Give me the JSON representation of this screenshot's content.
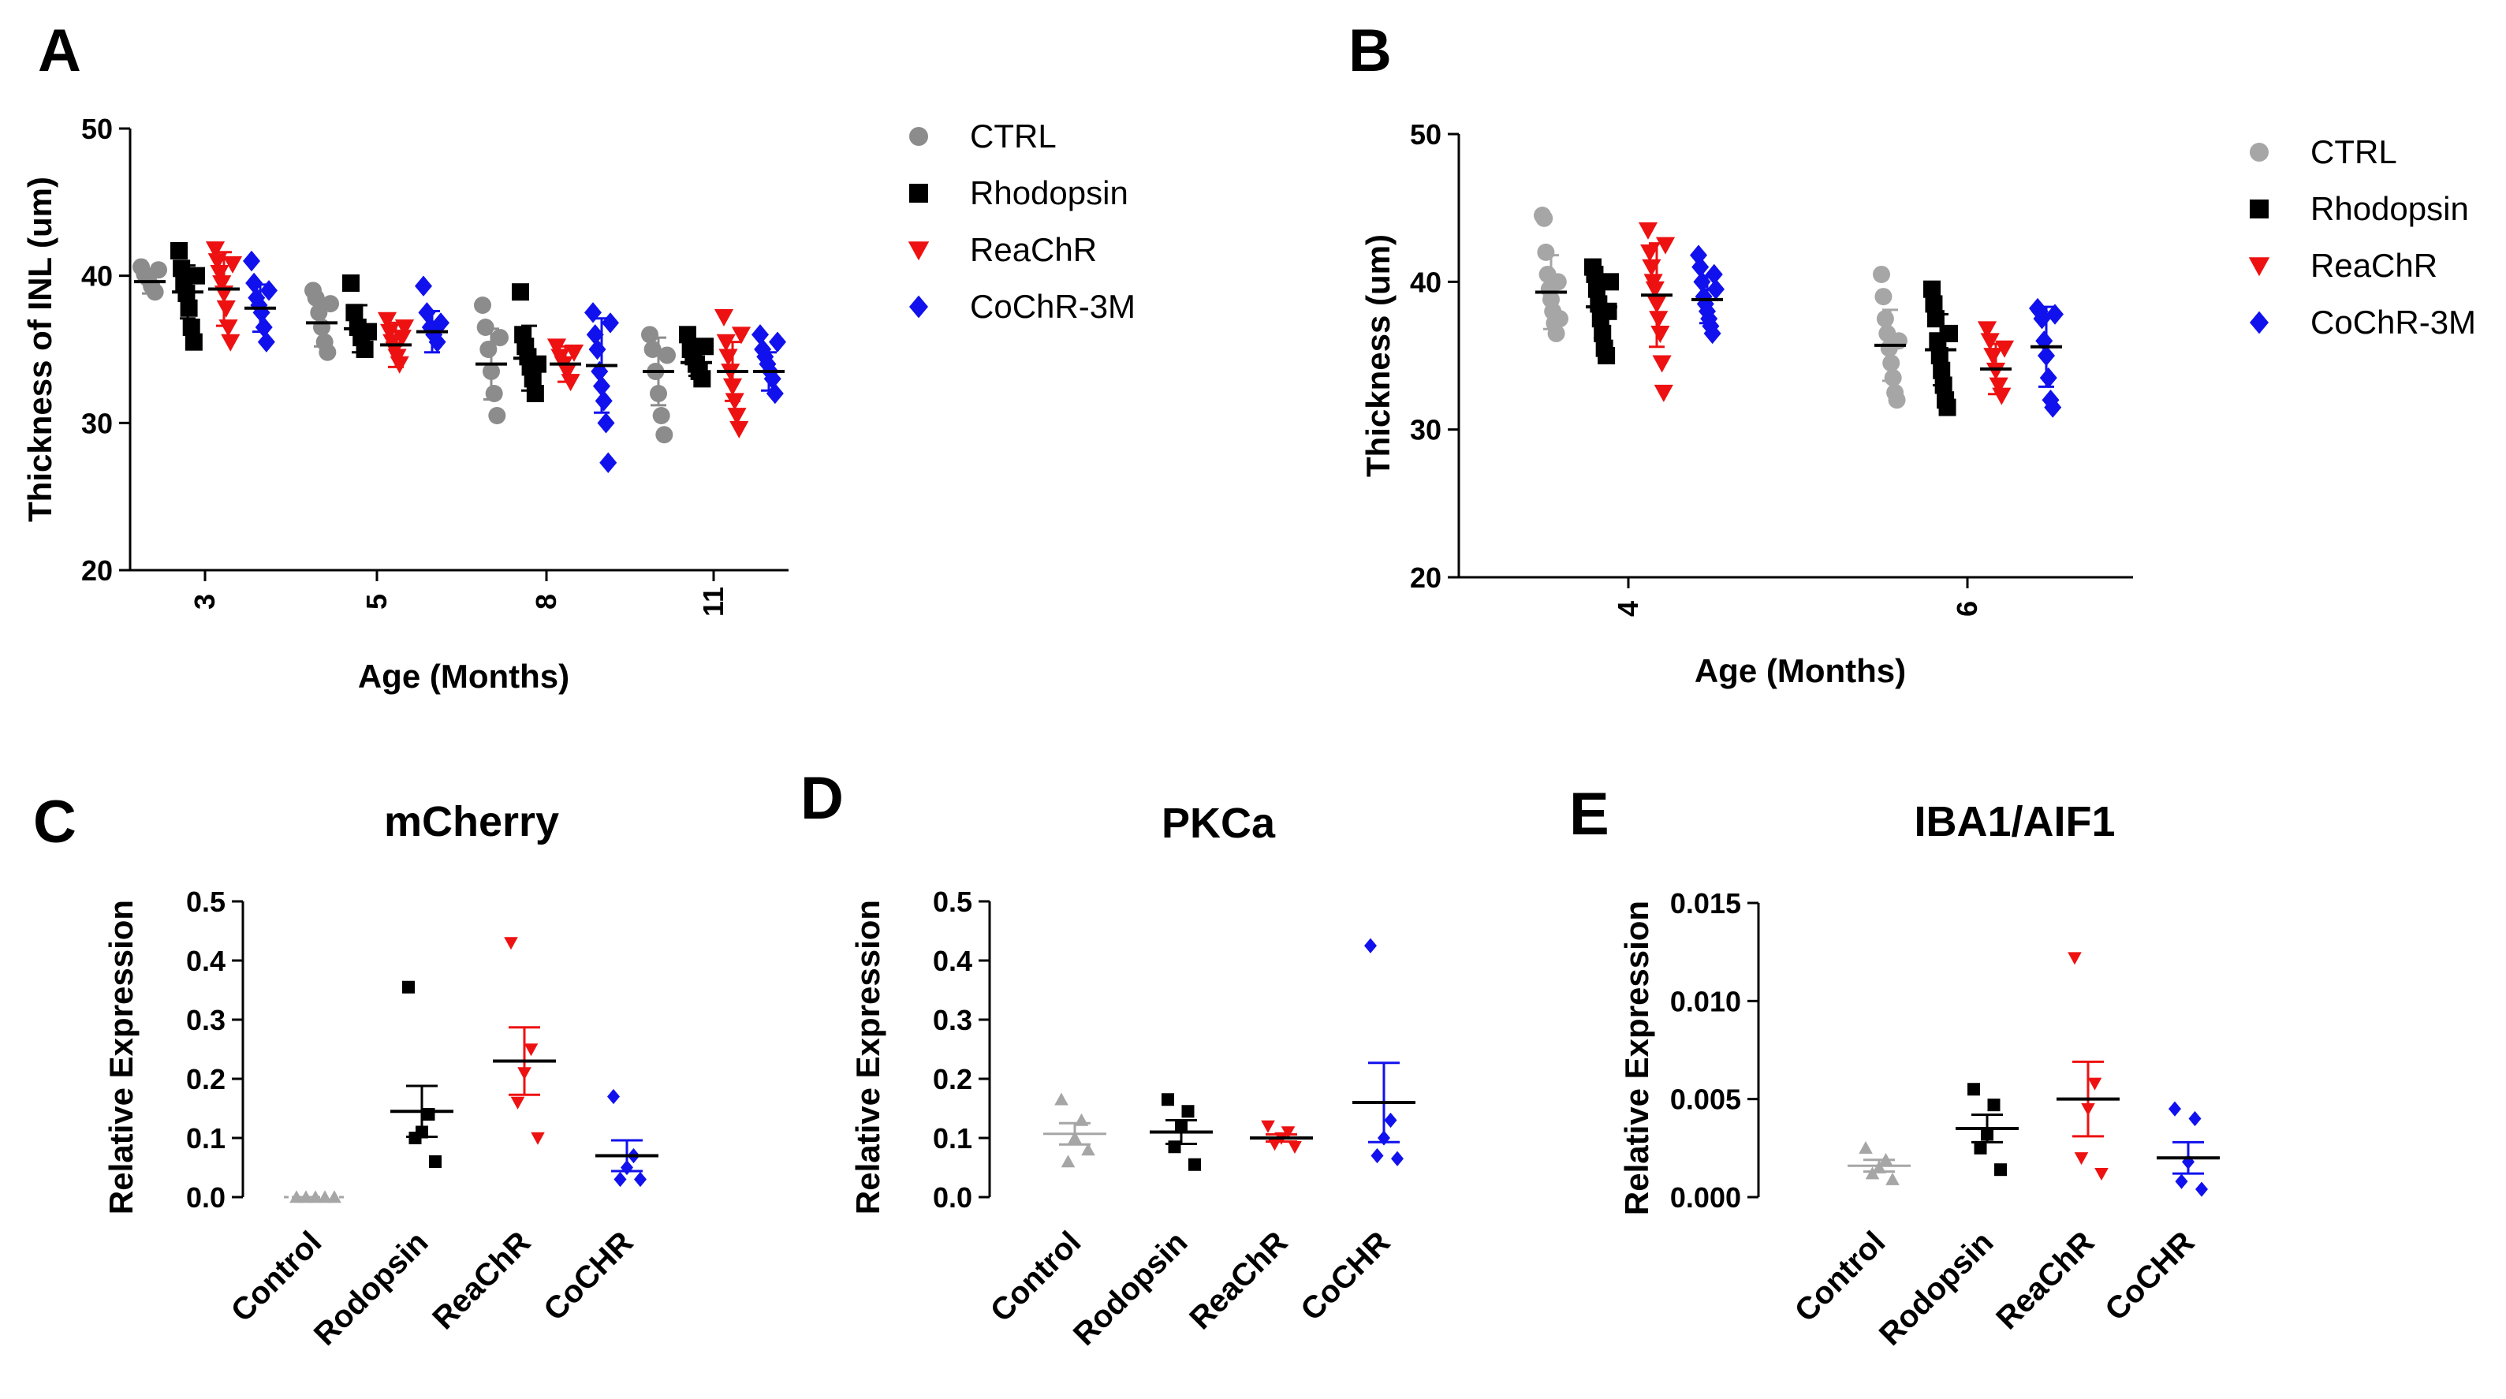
{
  "figure": {
    "panel_letters": [
      "A",
      "B",
      "C",
      "D",
      "E"
    ]
  },
  "colors": {
    "CTRL": "#8c8c8c",
    "Control": "#a6a6a6",
    "Rhodopsin": "#000000",
    "ReaChR": "#ee1111",
    "CoChR": "#1111ee",
    "axis": "#000000"
  },
  "chart_data": [
    {
      "id": "A",
      "type": "scatter",
      "title": "",
      "xlabel": "Age (Months)",
      "ylabel": "Thickness of  INL (um)",
      "ylim": [
        20,
        50
      ],
      "yticks": [
        "20",
        "30",
        "40",
        "50"
      ],
      "categories": [
        "3",
        "5",
        "8",
        "11"
      ],
      "legend": {
        "position": "right",
        "entries": [
          {
            "label": "CTRL",
            "marker": "circle",
            "color": "CTRL"
          },
          {
            "label": "Rhodopsin",
            "marker": "square",
            "color": "Rhodopsin"
          },
          {
            "label": "ReaChR",
            "marker": "triangle-down",
            "color": "ReaChR"
          },
          {
            "label": "CoChR-3M",
            "marker": "diamond",
            "color": "CoChR"
          }
        ]
      },
      "series": [
        {
          "name": "CTRL",
          "marker": "circle",
          "color": "CTRL",
          "points": [
            [
              40.6,
              40.1,
              39.8,
              39.3,
              38.9,
              40.4
            ],
            [
              39.0,
              38.5,
              37.5,
              36.5,
              35.5,
              34.8,
              38.1
            ],
            [
              38.0,
              36.5,
              35.0,
              33.5,
              32.0,
              30.5,
              35.8
            ],
            [
              36.0,
              35.0,
              33.5,
              32.0,
              30.5,
              29.2,
              34.6
            ]
          ],
          "mean": [
            39.6,
            36.8,
            34.0,
            33.5
          ],
          "sd": [
            0.8,
            1.6,
            2.4,
            2.3
          ]
        },
        {
          "name": "Rhodopsin",
          "marker": "square",
          "color": "Rhodopsin",
          "points": [
            [
              41.7,
              40.5,
              39.5,
              38.8,
              37.8,
              36.5,
              35.5,
              40.0
            ],
            [
              39.5,
              37.5,
              36.5,
              35.8,
              35.0,
              36.2
            ],
            [
              38.9,
              36.0,
              35.2,
              34.5,
              33.8,
              33.0,
              32.0,
              34.0
            ],
            [
              36.0,
              35.0,
              34.5,
              34.0,
              33.5,
              33.0,
              35.2
            ]
          ],
          "mean": [
            38.9,
            36.4,
            34.4,
            34.1
          ],
          "sd": [
            1.8,
            1.6,
            2.2,
            0.9
          ]
        },
        {
          "name": "ReaChR",
          "marker": "triangle-down",
          "color": "ReaChR",
          "points": [
            [
              41.8,
              41.0,
              40.2,
              39.5,
              38.8,
              37.8,
              36.5,
              35.5,
              40.8
            ],
            [
              37.0,
              36.2,
              35.5,
              35.0,
              34.5,
              34.0,
              35.8,
              36.5
            ],
            [
              35.2,
              34.5,
              34.0,
              33.5,
              32.8,
              34.8
            ],
            [
              37.2,
              35.5,
              34.5,
              33.5,
              32.5,
              31.5,
              30.5,
              29.6,
              36.0
            ]
          ],
          "mean": [
            39.1,
            35.3,
            34.0,
            33.5
          ],
          "sd": [
            2.5,
            1.5,
            1.2,
            2.0
          ]
        },
        {
          "name": "CoChR-3M",
          "marker": "diamond",
          "color": "CoChR",
          "points": [
            [
              41.0,
              39.5,
              38.5,
              38.0,
              37.5,
              36.5,
              35.5,
              39.0
            ],
            [
              39.3,
              37.5,
              36.5,
              36.0,
              35.5,
              36.8
            ],
            [
              37.5,
              36.0,
              35.0,
              33.5,
              32.5,
              31.5,
              30.0,
              27.3,
              36.8
            ],
            [
              36.0,
              35.0,
              34.5,
              34.0,
              33.5,
              33.0,
              32.0,
              35.5
            ]
          ],
          "mean": [
            37.8,
            36.2,
            33.9,
            33.5
          ],
          "sd": [
            1.6,
            1.4,
            3.2,
            1.3
          ]
        }
      ]
    },
    {
      "id": "B",
      "type": "scatter",
      "title": "",
      "xlabel": "Age (Months)",
      "ylabel": "Thickness (um)",
      "ylim": [
        20,
        50
      ],
      "yticks": [
        "20",
        "30",
        "40",
        "50"
      ],
      "categories": [
        "4",
        "6"
      ],
      "legend": {
        "position": "right",
        "entries": [
          {
            "label": "CTRL",
            "marker": "circle",
            "color": "Control"
          },
          {
            "label": "Rhodopsin",
            "marker": "square",
            "color": "Rhodopsin"
          },
          {
            "label": "ReaChR",
            "marker": "triangle-down",
            "color": "ReaChR"
          },
          {
            "label": "CoChR-3M",
            "marker": "diamond",
            "color": "CoChR"
          }
        ]
      },
      "series": [
        {
          "name": "CTRL",
          "marker": "circle",
          "color": "Control",
          "points": [
            [
              44.5,
              44.3,
              42.0,
              40.5,
              39.5,
              38.8,
              38.0,
              37.2,
              36.5,
              40.0,
              37.5
            ],
            [
              40.5,
              39.0,
              37.5,
              36.5,
              35.5,
              34.5,
              33.5,
              32.5,
              32.0,
              36.0
            ]
          ],
          "mean": [
            39.3,
            35.7
          ],
          "sd": [
            2.5,
            2.4
          ]
        },
        {
          "name": "Rhodopsin",
          "marker": "square",
          "color": "Rhodopsin",
          "points": [
            [
              41.0,
              40.5,
              39.5,
              38.5,
              37.5,
              36.5,
              35.5,
              35.0,
              38.0,
              40.0
            ],
            [
              39.5,
              38.5,
              37.5,
              36.0,
              35.0,
              34.0,
              33.0,
              32.0,
              31.5,
              36.5
            ]
          ],
          "mean": [
            38.3,
            35.4
          ],
          "sd": [
            2.1,
            2.4
          ]
        },
        {
          "name": "ReaChR",
          "marker": "triangle-down",
          "color": "ReaChR",
          "points": [
            [
              43.5,
              42.0,
              41.0,
              40.0,
              39.5,
              38.5,
              37.5,
              36.5,
              34.5,
              32.5,
              42.5
            ],
            [
              36.8,
              36.0,
              35.0,
              34.0,
              33.0,
              32.3,
              35.5
            ]
          ],
          "mean": [
            39.1,
            34.1
          ],
          "sd": [
            3.5,
            1.7
          ]
        },
        {
          "name": "CoChR-3M",
          "marker": "diamond",
          "color": "CoChR",
          "points": [
            [
              41.8,
              41.0,
              40.0,
              39.0,
              38.5,
              38.0,
              37.5,
              37.0,
              36.5,
              40.5,
              39.5
            ],
            [
              38.2,
              38.0,
              37.5,
              36.0,
              35.0,
              33.5,
              32.0,
              31.5,
              37.8
            ]
          ],
          "mean": [
            38.8,
            35.6
          ],
          "sd": [
            1.6,
            2.7
          ]
        }
      ]
    },
    {
      "id": "C",
      "type": "scatter",
      "title": "mCherry",
      "xlabel": "",
      "ylabel": "Relative Expression",
      "ylim": [
        0,
        0.5
      ],
      "yticks": [
        "0.0",
        "0.1",
        "0.2",
        "0.3",
        "0.4",
        "0.5"
      ],
      "categories": [
        "Control",
        "Rodopsin",
        "ReaChR",
        "CoCHR"
      ],
      "groups": [
        {
          "name": "Control",
          "marker": "triangle-up",
          "color": "Control",
          "points": [
            0.0,
            0.0,
            0.0,
            0.0,
            0.0
          ],
          "mean": 0.0,
          "sem": 0.0
        },
        {
          "name": "Rodopsin",
          "marker": "square",
          "color": "Rhodopsin",
          "points": [
            0.355,
            0.14,
            0.11,
            0.1,
            0.06
          ],
          "mean": 0.145,
          "sem": 0.043
        },
        {
          "name": "ReaChR",
          "marker": "triangle-down",
          "color": "ReaChR",
          "points": [
            0.43,
            0.25,
            0.21,
            0.16,
            0.1
          ],
          "mean": 0.23,
          "sem": 0.057
        },
        {
          "name": "CoCHR",
          "marker": "diamond",
          "color": "CoChR",
          "points": [
            0.17,
            0.07,
            0.05,
            0.03,
            0.03
          ],
          "mean": 0.07,
          "sem": 0.026
        }
      ]
    },
    {
      "id": "D",
      "type": "scatter",
      "title": "PKCa",
      "xlabel": "",
      "ylabel": "Relative Expression",
      "ylim": [
        0,
        0.5
      ],
      "yticks": [
        "0.0",
        "0.1",
        "0.2",
        "0.3",
        "0.4",
        "0.5"
      ],
      "categories": [
        "Control",
        "Rodopsin",
        "ReaChR",
        "CoCHR"
      ],
      "groups": [
        {
          "name": "Control",
          "marker": "triangle-up",
          "color": "Control",
          "points": [
            0.165,
            0.13,
            0.1,
            0.06,
            0.08
          ],
          "mean": 0.107,
          "sem": 0.018
        },
        {
          "name": "Rodopsin",
          "marker": "square",
          "color": "Rhodopsin",
          "points": [
            0.165,
            0.145,
            0.12,
            0.085,
            0.055
          ],
          "mean": 0.11,
          "sem": 0.02
        },
        {
          "name": "ReaChR",
          "marker": "triangle-down",
          "color": "ReaChR",
          "points": [
            0.12,
            0.11,
            0.1,
            0.09,
            0.085
          ],
          "mean": 0.1,
          "sem": 0.006
        },
        {
          "name": "CoCHR",
          "marker": "diamond",
          "color": "CoChR",
          "points": [
            0.425,
            0.13,
            0.1,
            0.07,
            0.065
          ],
          "mean": 0.16,
          "sem": 0.067
        }
      ]
    },
    {
      "id": "E",
      "type": "scatter",
      "title": "IBA1/AIF1",
      "xlabel": "",
      "ylabel": "Relative Expression",
      "ylim": [
        0,
        0.015
      ],
      "yticks": [
        "0.000",
        "0.005",
        "0.010",
        "0.015"
      ],
      "categories": [
        "Control",
        "Rodopsin",
        "ReaChR",
        "CoCHR"
      ],
      "groups": [
        {
          "name": "Control",
          "marker": "triangle-up",
          "color": "Control",
          "points": [
            0.0025,
            0.0019,
            0.0015,
            0.0012,
            0.0009
          ],
          "mean": 0.0016,
          "sem": 0.0003
        },
        {
          "name": "Rodopsin",
          "marker": "square",
          "color": "Rhodopsin",
          "points": [
            0.0055,
            0.0047,
            0.0032,
            0.0025,
            0.0014
          ],
          "mean": 0.0035,
          "sem": 0.0007
        },
        {
          "name": "ReaChR",
          "marker": "triangle-down",
          "color": "ReaChR",
          "points": [
            0.0122,
            0.0058,
            0.0045,
            0.002,
            0.0012
          ],
          "mean": 0.005,
          "sem": 0.0019
        },
        {
          "name": "CoCHR",
          "marker": "diamond",
          "color": "CoChR",
          "points": [
            0.0045,
            0.004,
            0.0018,
            0.0008,
            0.0004
          ],
          "mean": 0.002,
          "sem": 0.0008
        }
      ]
    }
  ]
}
